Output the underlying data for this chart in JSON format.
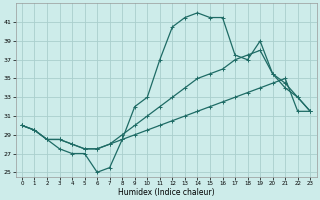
{
  "xlabel": "Humidex (Indice chaleur)",
  "background_color": "#cdecea",
  "grid_color": "#aacfcd",
  "line_color": "#1e6b65",
  "xlim": [
    -0.5,
    23.5
  ],
  "ylim": [
    24.5,
    43
  ],
  "yticks": [
    25,
    27,
    29,
    31,
    33,
    35,
    37,
    39,
    41
  ],
  "xticks": [
    0,
    1,
    2,
    3,
    4,
    5,
    6,
    7,
    8,
    9,
    10,
    11,
    12,
    13,
    14,
    15,
    16,
    17,
    18,
    19,
    20,
    21,
    22,
    23
  ],
  "s1_x": [
    0,
    1,
    2,
    3,
    4,
    5,
    6,
    7,
    8,
    9,
    10,
    11,
    12,
    13,
    14,
    15,
    16,
    17,
    18,
    19,
    20,
    21,
    22,
    23
  ],
  "s1_y": [
    30.0,
    29.5,
    28.5,
    28.5,
    28.0,
    27.5,
    27.5,
    28.0,
    28.5,
    29.0,
    29.5,
    30.0,
    30.5,
    31.0,
    31.5,
    32.0,
    32.5,
    33.0,
    33.5,
    34.0,
    34.5,
    35.0,
    31.5,
    31.5
  ],
  "s2_x": [
    0,
    1,
    2,
    3,
    4,
    5,
    6,
    7,
    8,
    9,
    10,
    11,
    12,
    13,
    14,
    15,
    16,
    17,
    18,
    19,
    20,
    21,
    22,
    23
  ],
  "s2_y": [
    30.0,
    29.5,
    28.5,
    28.5,
    28.0,
    27.5,
    27.5,
    28.0,
    29.0,
    30.0,
    31.0,
    32.0,
    33.0,
    34.0,
    35.0,
    35.5,
    36.0,
    37.0,
    37.5,
    38.0,
    35.5,
    34.0,
    33.0,
    31.5
  ],
  "s3_x": [
    0,
    1,
    2,
    3,
    4,
    5,
    6,
    7,
    8,
    9,
    10,
    11,
    12,
    13,
    14,
    15,
    16,
    17,
    18,
    19,
    20,
    21,
    22,
    23
  ],
  "s3_y": [
    30.0,
    29.5,
    28.5,
    27.5,
    27.0,
    27.0,
    25.0,
    25.5,
    28.5,
    32.0,
    33.0,
    37.0,
    40.5,
    41.5,
    42.0,
    41.5,
    41.5,
    37.5,
    37.0,
    39.0,
    35.5,
    34.5,
    33.0,
    31.5
  ]
}
